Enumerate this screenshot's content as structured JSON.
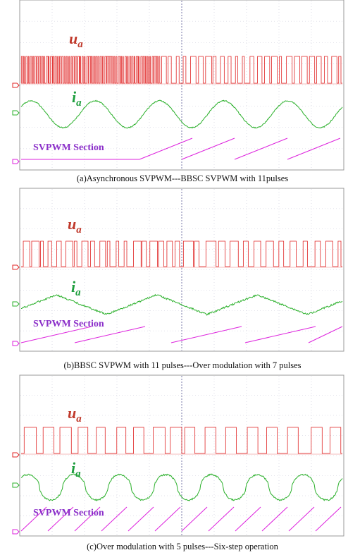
{
  "colors": {
    "voltage": "#e02424",
    "current": "#2bb02b",
    "sector": "#dd22dd",
    "grid": "#c8c8d8",
    "center_line": "#9090b8",
    "label_u": "#c0392b",
    "label_i": "#1e9e3e",
    "label_section": "#8b2fc9",
    "border": "#999999"
  },
  "panels": [
    {
      "id": "a",
      "u_main": "u",
      "u_sub": "a",
      "i_main": "i",
      "i_sub": "a",
      "section_label": "SVPWM Section",
      "caption": "(a)Asynchronous SVPWM---BBSC SVPWM with 11pulses",
      "voltage_mode": "dense_then_11",
      "current_mode": "sine",
      "sector_mode": "flat_then_ramps"
    },
    {
      "id": "b",
      "u_main": "u",
      "u_sub": "a",
      "i_main": "i",
      "i_sub": "a",
      "section_label": "SVPWM Section",
      "caption": "(b)BBSC SVPWM with 11 pulses---Over modulation with 7 pulses",
      "voltage_mode": "11_then_7",
      "current_mode": "triangular",
      "sector_mode": "long_ramps"
    },
    {
      "id": "c",
      "u_main": "u",
      "u_sub": "a",
      "i_main": "i",
      "i_sub": "a",
      "section_label": "SVPWM Section",
      "caption": "(c)Over modulation with 5 pulses---Six-step operation",
      "voltage_mode": "5_then_sixstep",
      "current_mode": "cusped",
      "sector_mode": "short_ramps"
    }
  ]
}
